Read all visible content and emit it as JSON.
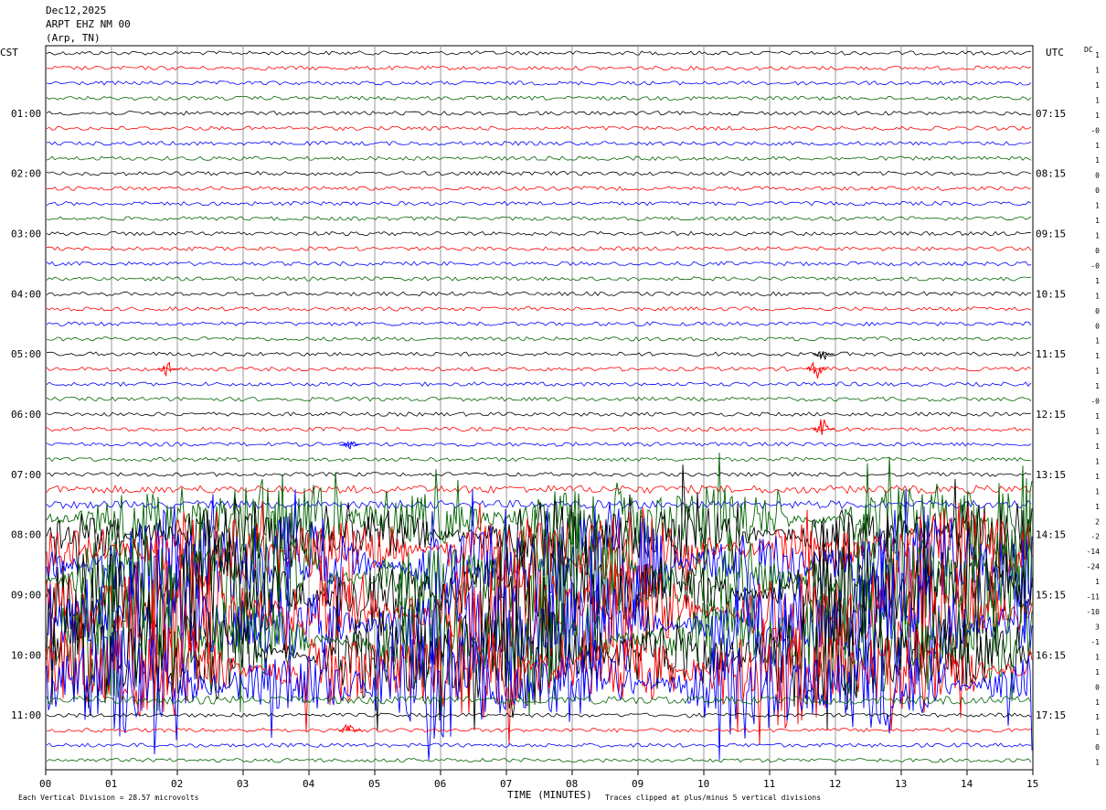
{
  "header": {
    "date": "Dec12,2025",
    "station": "ARPT EHZ NM 00",
    "location": "(Arp, TN)"
  },
  "chart_data": {
    "type": "line",
    "title": "",
    "xlabel": "TIME (MINUTES)",
    "left_axis_label": "CST",
    "right_axis_label": "UTC",
    "dc_label": "DC",
    "x_ticks": [
      "00",
      "01",
      "02",
      "03",
      "04",
      "05",
      "06",
      "07",
      "08",
      "09",
      "10",
      "11",
      "12",
      "13",
      "14",
      "15"
    ],
    "xlim": [
      0,
      15
    ],
    "left_time_labels": [
      "01:00",
      "02:00",
      "03:00",
      "04:00",
      "05:00",
      "06:00",
      "07:00",
      "08:00",
      "09:00",
      "10:00",
      "11:00"
    ],
    "right_time_labels": [
      "07:15",
      "08:15",
      "09:15",
      "10:15",
      "11:15",
      "12:15",
      "13:15",
      "14:15",
      "15:15",
      "16:15",
      "17:15"
    ],
    "dc_offsets": [
      "1",
      "1",
      "1",
      "1",
      "1",
      "-0",
      "1",
      "1",
      "0",
      "0",
      "1",
      "1",
      "1",
      "0",
      "-0",
      "1",
      "1",
      "0",
      "0",
      "1",
      "1",
      "1",
      "1",
      "-0",
      "1",
      "1",
      "1",
      "1",
      "1",
      "1",
      "1",
      "2",
      "-2",
      "-14",
      "-24",
      "1",
      "-11",
      "-10",
      "3",
      "-1",
      "1",
      "1",
      "0",
      "1",
      "1",
      "1",
      "0",
      "1"
    ],
    "trace_colors": [
      "#000000",
      "#ff0000",
      "#0000ff",
      "#006400"
    ],
    "trace_count": 48,
    "trace_activity": [
      1,
      1,
      1,
      1,
      1,
      1,
      1,
      1,
      1,
      1,
      1,
      1,
      1,
      1,
      1,
      1,
      1,
      1,
      1,
      1,
      1,
      1,
      1,
      1,
      1,
      1,
      1,
      1,
      1,
      2,
      2,
      6,
      5,
      6,
      9,
      9,
      9,
      9,
      9,
      9,
      9,
      8,
      8,
      2,
      1,
      1,
      1,
      1
    ],
    "events": [
      {
        "trace": 21,
        "minute": 11.7,
        "amp": 3
      },
      {
        "trace": 21,
        "minute": 1.85,
        "amp": 2
      },
      {
        "trace": 20,
        "minute": 11.8,
        "amp": 2
      },
      {
        "trace": 25,
        "minute": 11.8,
        "amp": 3
      },
      {
        "trace": 26,
        "minute": 4.6,
        "amp": 2
      },
      {
        "trace": 45,
        "minute": 4.6,
        "amp": 2
      }
    ],
    "footer_left": "Each Vertical Division =   28.57 microvolts",
    "footer_right": "Traces clipped at plus/minus 5 vertical divisions"
  }
}
